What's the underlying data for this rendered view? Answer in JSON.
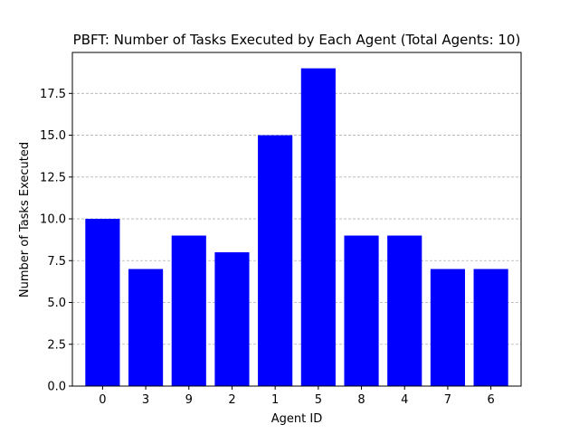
{
  "chart_data": {
    "type": "bar",
    "title": "PBFT: Number of Tasks Executed by Each Agent (Total Agents: 10)",
    "xlabel": "Agent ID",
    "ylabel": "Number of Tasks Executed",
    "categories": [
      "0",
      "3",
      "9",
      "2",
      "1",
      "5",
      "8",
      "4",
      "7",
      "6"
    ],
    "values": [
      10,
      7,
      9,
      8,
      15,
      19,
      9,
      9,
      7,
      7
    ],
    "ylim": [
      0,
      19.95
    ],
    "yticks": [
      0,
      2.5,
      5,
      7.5,
      10,
      12.5,
      15,
      17.5
    ],
    "ytick_labels": [
      "0.0",
      "2.5",
      "5.0",
      "7.5",
      "10.0",
      "12.5",
      "15.0",
      "17.5"
    ],
    "grid": "y-dashed",
    "bar_color": "#0000ff",
    "legend": "none"
  }
}
